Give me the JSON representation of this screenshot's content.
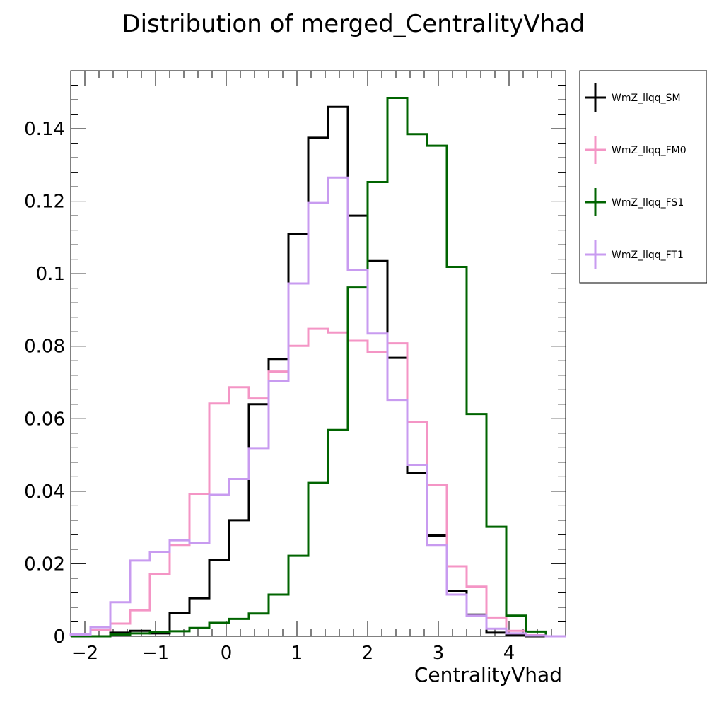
{
  "chart_data": {
    "type": "line",
    "drawstyle": "step",
    "title": "Distribution of merged_CentralityVhad",
    "xlabel": "CentralityVhad",
    "ylabel": "",
    "xlim": [
      -2.2,
      4.8
    ],
    "ylim": [
      0,
      0.156
    ],
    "x_ticks": [
      -2,
      -1,
      0,
      1,
      2,
      3,
      4
    ],
    "x_tick_labels": [
      "−2",
      "−1",
      "0",
      "1",
      "2",
      "3",
      "4"
    ],
    "y_ticks": [
      0,
      0.02,
      0.04,
      0.06,
      0.08,
      0.1,
      0.12,
      0.14
    ],
    "y_tick_labels": [
      "0",
      "0.02",
      "0.04",
      "0.06",
      "0.08",
      "0.1",
      "0.12",
      "0.14"
    ],
    "grid": false,
    "legend_position": "outside-right-top",
    "bin_edges": [
      -2.2,
      -1.92,
      -1.64,
      -1.36,
      -1.08,
      -0.8,
      -0.52,
      -0.24,
      0.04,
      0.32,
      0.6,
      0.88,
      1.16,
      1.44,
      1.72,
      2.0,
      2.28,
      2.56,
      2.84,
      3.12,
      3.4,
      3.68,
      3.96,
      4.24,
      4.52,
      4.8
    ],
    "series": [
      {
        "name": "WmZ_llqq_SM",
        "color": "#000000",
        "values": [
          0.0,
          0.0,
          0.001,
          0.0015,
          0.0008,
          0.0065,
          0.0105,
          0.021,
          0.032,
          0.064,
          0.0765,
          0.111,
          0.1375,
          0.146,
          0.116,
          0.1035,
          0.0768,
          0.045,
          0.0278,
          0.0125,
          0.006,
          0.001,
          0.0005,
          0.0,
          0.0
        ]
      },
      {
        "name": "WmZ_llqq_FM0",
        "color": "#f495c5",
        "values": [
          0.0005,
          0.0018,
          0.0035,
          0.0072,
          0.0172,
          0.0252,
          0.0393,
          0.0642,
          0.0687,
          0.0656,
          0.073,
          0.0801,
          0.0848,
          0.0838,
          0.0815,
          0.0785,
          0.0808,
          0.0591,
          0.0418,
          0.0193,
          0.0137,
          0.0052,
          0.0015,
          0.0003,
          0.0
        ]
      },
      {
        "name": "WmZ_llqq_FS1",
        "color": "#006400",
        "values": [
          0.0,
          0.0,
          0.0005,
          0.0008,
          0.0012,
          0.0014,
          0.0023,
          0.0037,
          0.0048,
          0.0063,
          0.0115,
          0.0222,
          0.0423,
          0.0569,
          0.0962,
          0.1253,
          0.1485,
          0.1385,
          0.1353,
          0.1019,
          0.0613,
          0.0302,
          0.0057,
          0.0013,
          0.0
        ]
      },
      {
        "name": "WmZ_llqq_FT1",
        "color": "#c89bf0",
        "values": [
          0.0005,
          0.0025,
          0.0094,
          0.0209,
          0.0233,
          0.0265,
          0.0257,
          0.039,
          0.0434,
          0.0519,
          0.0703,
          0.0973,
          0.1195,
          0.1265,
          0.101,
          0.0835,
          0.0652,
          0.0473,
          0.0252,
          0.0115,
          0.0057,
          0.0021,
          0.0008,
          0.0002,
          0.0
        ]
      }
    ]
  }
}
